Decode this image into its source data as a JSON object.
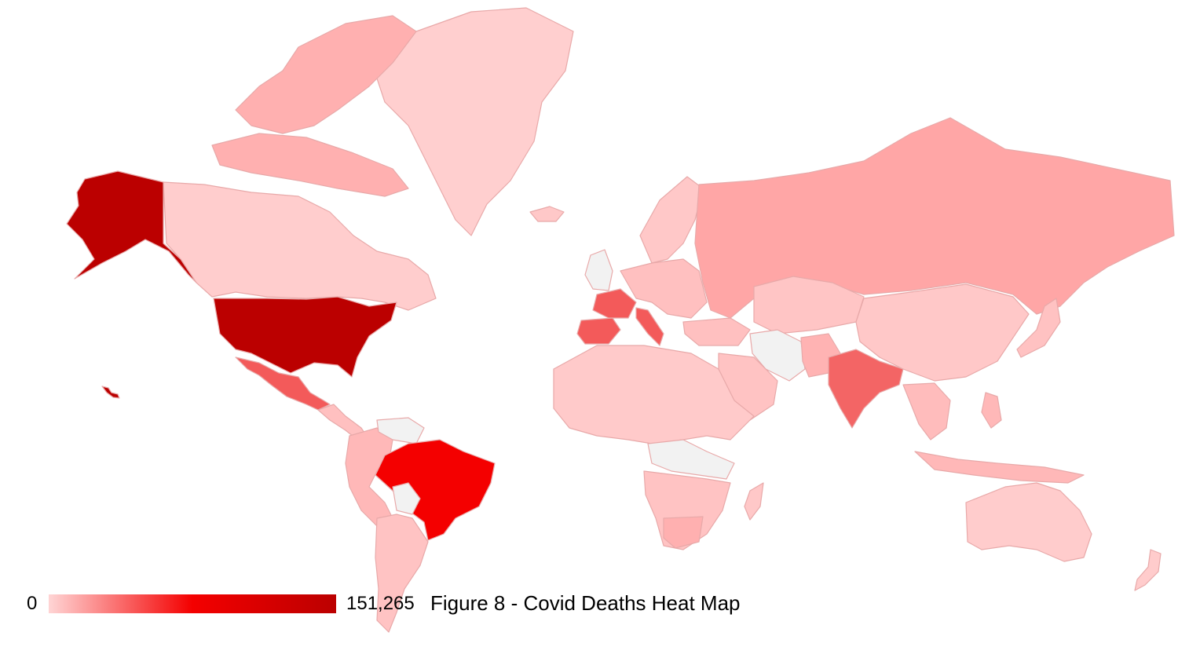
{
  "map": {
    "type": "choropleth",
    "metric": "Covid deaths",
    "colors": {
      "no_data": "#f2f2f2",
      "scale_min": "#ffd5d5",
      "scale_mid": "#f40000",
      "scale_max": "#bb0000",
      "border": "#e8a9a9"
    },
    "regions": [
      {
        "name": "Alaska (United States)",
        "shade": "max"
      },
      {
        "name": "United States",
        "shade": "max"
      },
      {
        "name": "Brazil",
        "shade": "high"
      },
      {
        "name": "India",
        "shade": "medium"
      },
      {
        "name": "Mexico",
        "shade": "medium"
      },
      {
        "name": "France",
        "shade": "medium"
      },
      {
        "name": "Spain",
        "shade": "medium"
      },
      {
        "name": "Italy",
        "shade": "medium"
      },
      {
        "name": "Russia",
        "shade": "low-medium"
      },
      {
        "name": "Canada",
        "shade": "low"
      },
      {
        "name": "Greenland",
        "shade": "very low"
      },
      {
        "name": "China",
        "shade": "low"
      },
      {
        "name": "Australia",
        "shade": "very low"
      },
      {
        "name": "Iran",
        "shade": "no data"
      },
      {
        "name": "Venezuela",
        "shade": "no data"
      },
      {
        "name": "DR Congo",
        "shade": "no data"
      }
    ]
  },
  "legend": {
    "min_label": "0",
    "max_label": "151,265"
  },
  "caption": "Figure 8 - Covid Deaths Heat Map"
}
